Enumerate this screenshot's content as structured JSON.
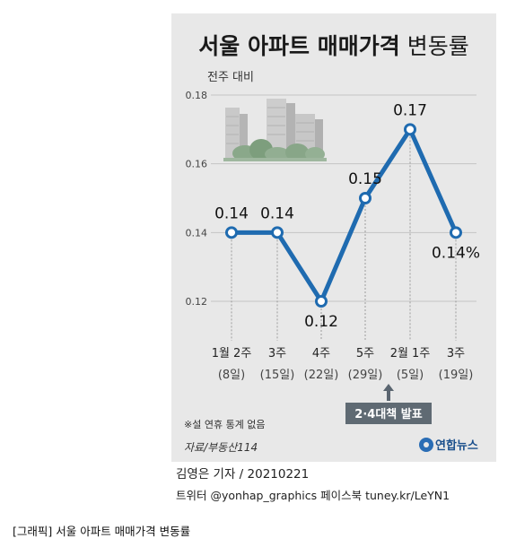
{
  "header": {
    "title_bold": "서울 아파트 매매가격",
    "title_light": "변동률",
    "subtitle": "전주 대비"
  },
  "chart_data": {
    "type": "line",
    "title": "서울 아파트 매매가격 변동률",
    "ylabel": "전주 대비",
    "categories": [
      "1월 2주 (8일)",
      "3주 (15일)",
      "4주 (22일)",
      "5주 (29일)",
      "2월 1주 (5일)",
      "3주 (19일)"
    ],
    "tick_line1": [
      "1월 2주",
      "3주",
      "4주",
      "5주",
      "2월 1주",
      "3주"
    ],
    "tick_line2": [
      "(8일)",
      "(15일)",
      "(22일)",
      "(29일)",
      "(5일)",
      "(19일)"
    ],
    "values": [
      0.14,
      0.14,
      0.12,
      0.15,
      0.17,
      0.14
    ],
    "data_labels": [
      "0.14",
      "0.14",
      "0.12",
      "0.15",
      "0.17",
      "0.14%"
    ],
    "ylim": [
      0.11,
      0.18
    ],
    "yticks": [
      "0.18",
      "0.16",
      "0.14",
      "0.12"
    ],
    "line_color": "#1f6bb0",
    "annotation": "2·4대책 발표"
  },
  "note": "※설 연휴 통계 없음",
  "source": "자료/부동산114",
  "logo": "연합뉴스",
  "credits": {
    "reporter": "김영은 기자 / 20210221",
    "social": "트위터 @yonhap_graphics  페이스북 tuney.kr/LeYN1"
  },
  "caption": "[그래픽] 서울 아파트 매매가격 변동률"
}
